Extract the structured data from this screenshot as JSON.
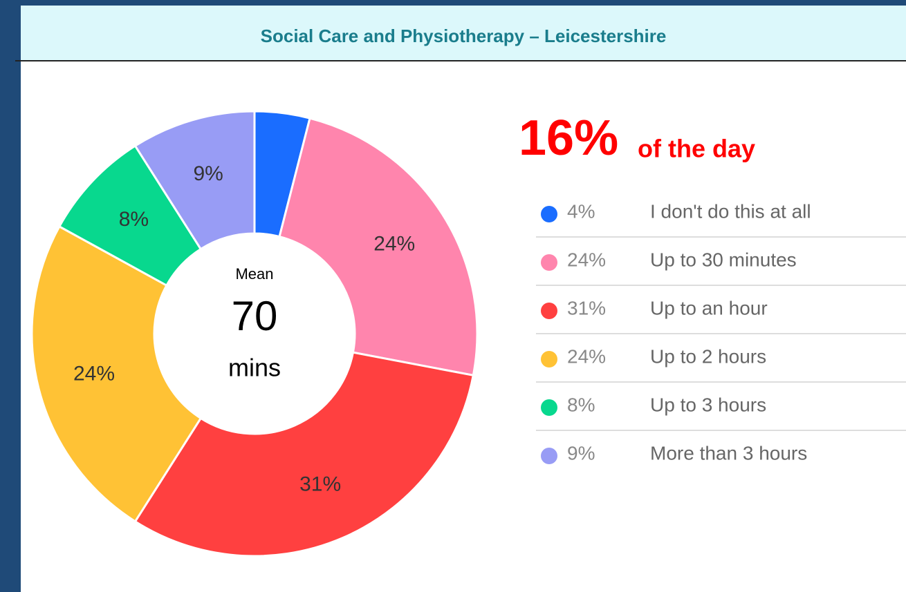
{
  "chart_data": {
    "type": "pie",
    "donut": true,
    "title": "Social Care and Physiotherapy – Leicestershire",
    "headline": "16%",
    "headline_suffix": "of the day",
    "center_label": "Mean",
    "center_value": 70,
    "center_unit": "mins",
    "categories": [
      "I don't do this at all",
      "Up to 30 minutes",
      "Up to an hour",
      "Up to 2 hours",
      "Up to 3 hours",
      "More than 3 hours"
    ],
    "values": [
      4,
      24,
      31,
      24,
      8,
      9
    ],
    "value_labels": [
      "4%",
      "24%",
      "31%",
      "24%",
      "8%",
      "9%"
    ],
    "colors": [
      "#1a6dff",
      "#ff85ad",
      "#ff4040",
      "#ffc235",
      "#08d88e",
      "#989cf5"
    ]
  }
}
